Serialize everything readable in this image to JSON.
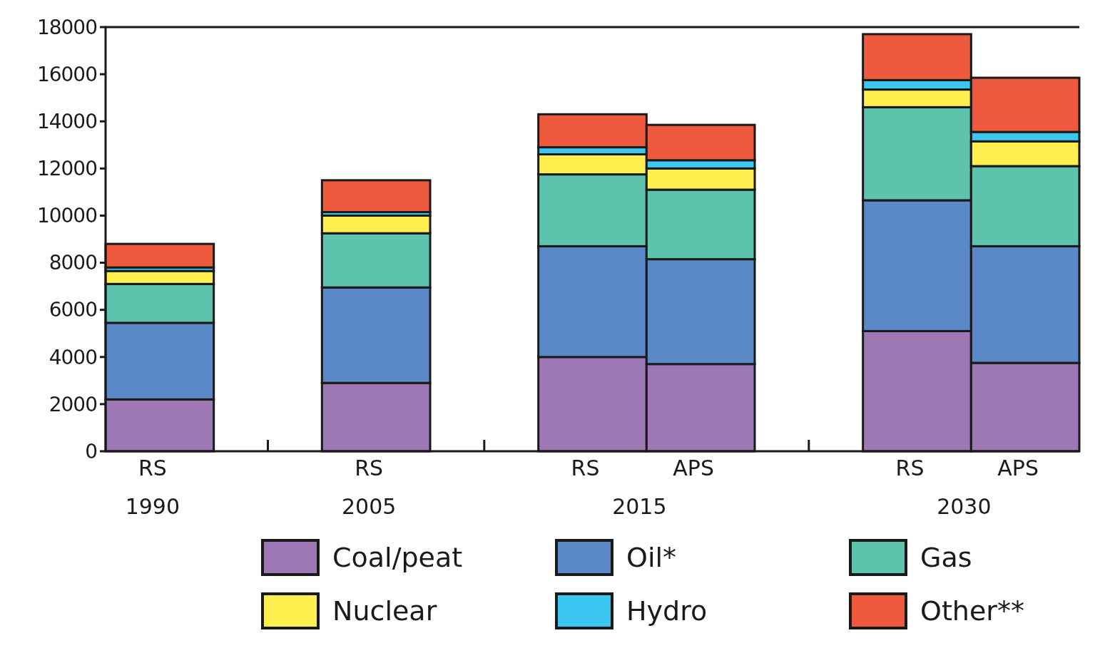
{
  "chart_data": {
    "type": "bar",
    "stacked": true,
    "categories": [
      "RS",
      null,
      "RS",
      null,
      "RS",
      "APS",
      null,
      "RS",
      "APS"
    ],
    "series": [
      {
        "name": "Coal/peat",
        "color": "#9e78b4",
        "values": [
          2200,
          null,
          2900,
          null,
          4000,
          3700,
          null,
          5100,
          3750
        ]
      },
      {
        "name": "Oil*",
        "color": "#5b88c6",
        "values": [
          3250,
          null,
          4050,
          null,
          4700,
          4450,
          null,
          5550,
          4950
        ]
      },
      {
        "name": "Gas",
        "color": "#5dc3ad",
        "values": [
          1650,
          null,
          2300,
          null,
          3050,
          2950,
          null,
          3950,
          3400
        ]
      },
      {
        "name": "Nuclear",
        "color": "#fff04f",
        "values": [
          550,
          null,
          750,
          null,
          850,
          900,
          null,
          750,
          1050
        ]
      },
      {
        "name": "Hydro",
        "color": "#3bc8f0",
        "values": [
          150,
          null,
          150,
          null,
          300,
          350,
          null,
          400,
          400
        ]
      },
      {
        "name": "Other**",
        "color": "#ef5a3f",
        "values": [
          1000,
          null,
          1350,
          null,
          1400,
          1500,
          null,
          1950,
          2300
        ]
      }
    ],
    "annotations": [
      "1990",
      "2005",
      "2015",
      "2030"
    ],
    "ylim": [
      0,
      18000
    ],
    "yticks": [
      0,
      2000,
      4000,
      6000,
      8000,
      10000,
      12000,
      14000,
      16000,
      18000
    ],
    "legend": "bottom",
    "grid": false
  }
}
